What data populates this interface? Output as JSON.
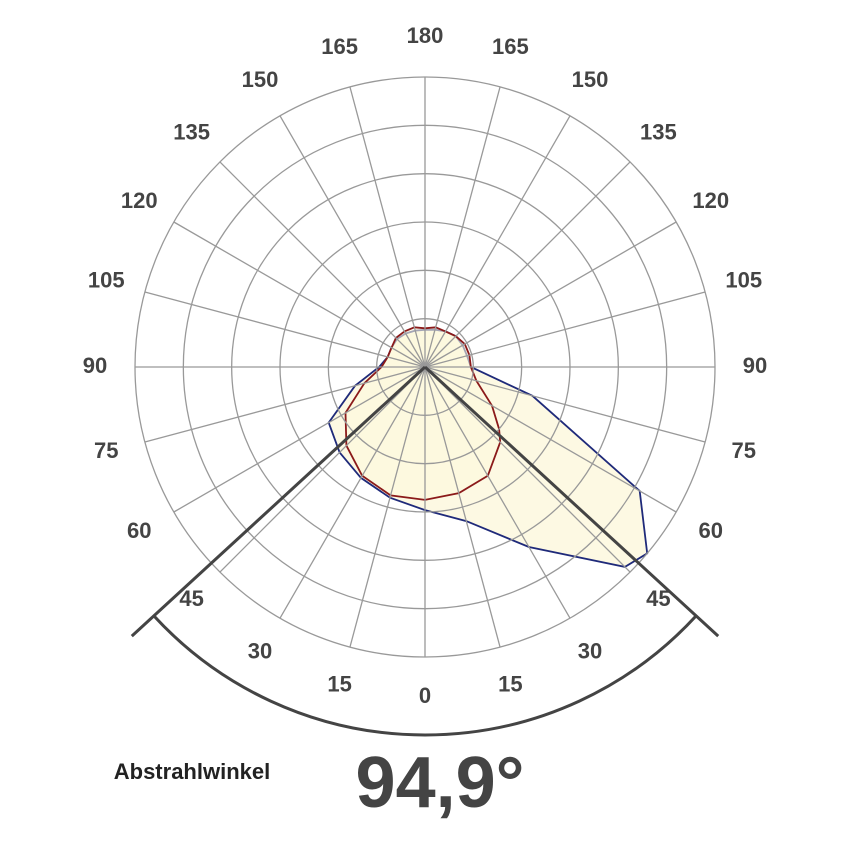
{
  "chart_data": {
    "type": "polar",
    "x": [
      -180,
      -165,
      -150,
      -135,
      -120,
      -105,
      -90,
      -75,
      -60,
      -45,
      -30,
      -15,
      0,
      15,
      30,
      45,
      50,
      60,
      75,
      90,
      105,
      120,
      135,
      150,
      165,
      180
    ],
    "series": [
      {
        "color": "#1f2a7a",
        "values": [
          0.77,
          0.78,
          0.8,
          0.82,
          0.8,
          0.8,
          0.95,
          1.5,
          2.3,
          2.5,
          2.65,
          2.8,
          2.96,
          3.3,
          4.3,
          5.85,
          6.0,
          5.13,
          2.3,
          0.95,
          0.9,
          0.9,
          0.9,
          0.85,
          0.8,
          0.77
        ]
      },
      {
        "color": "#8b1a1a",
        "values": [
          0.8,
          0.85,
          0.85,
          0.85,
          0.8,
          0.8,
          0.9,
          1.3,
          1.9,
          2.3,
          2.6,
          2.75,
          2.75,
          2.7,
          2.6,
          2.2,
          2.0,
          1.6,
          1.1,
          0.95,
          0.95,
          0.95,
          0.9,
          0.85,
          0.85,
          0.8
        ]
      }
    ],
    "fill": "#fdf8dc",
    "rlim": [
      0,
      6
    ],
    "rticks": [
      1,
      2,
      3,
      4,
      5,
      6
    ],
    "angle_ticks": [
      {
        "value": -165,
        "label": "165"
      },
      {
        "value": -150,
        "label": "150"
      },
      {
        "value": -135,
        "label": "135"
      },
      {
        "value": -120,
        "label": "120"
      },
      {
        "value": -105,
        "label": "105"
      },
      {
        "value": -90,
        "label": "90"
      },
      {
        "value": -75,
        "label": "75"
      },
      {
        "value": -60,
        "label": "60"
      },
      {
        "value": -45,
        "label": "45"
      },
      {
        "value": -30,
        "label": "30"
      },
      {
        "value": -15,
        "label": "15"
      },
      0,
      15,
      30,
      45,
      60,
      75,
      90,
      105,
      120,
      135,
      150,
      165,
      180
    ],
    "beam_angle_label": "Abstrahlwinkel",
    "beam_angle": 94.9,
    "beam_angle_value_label": "94,9°"
  }
}
